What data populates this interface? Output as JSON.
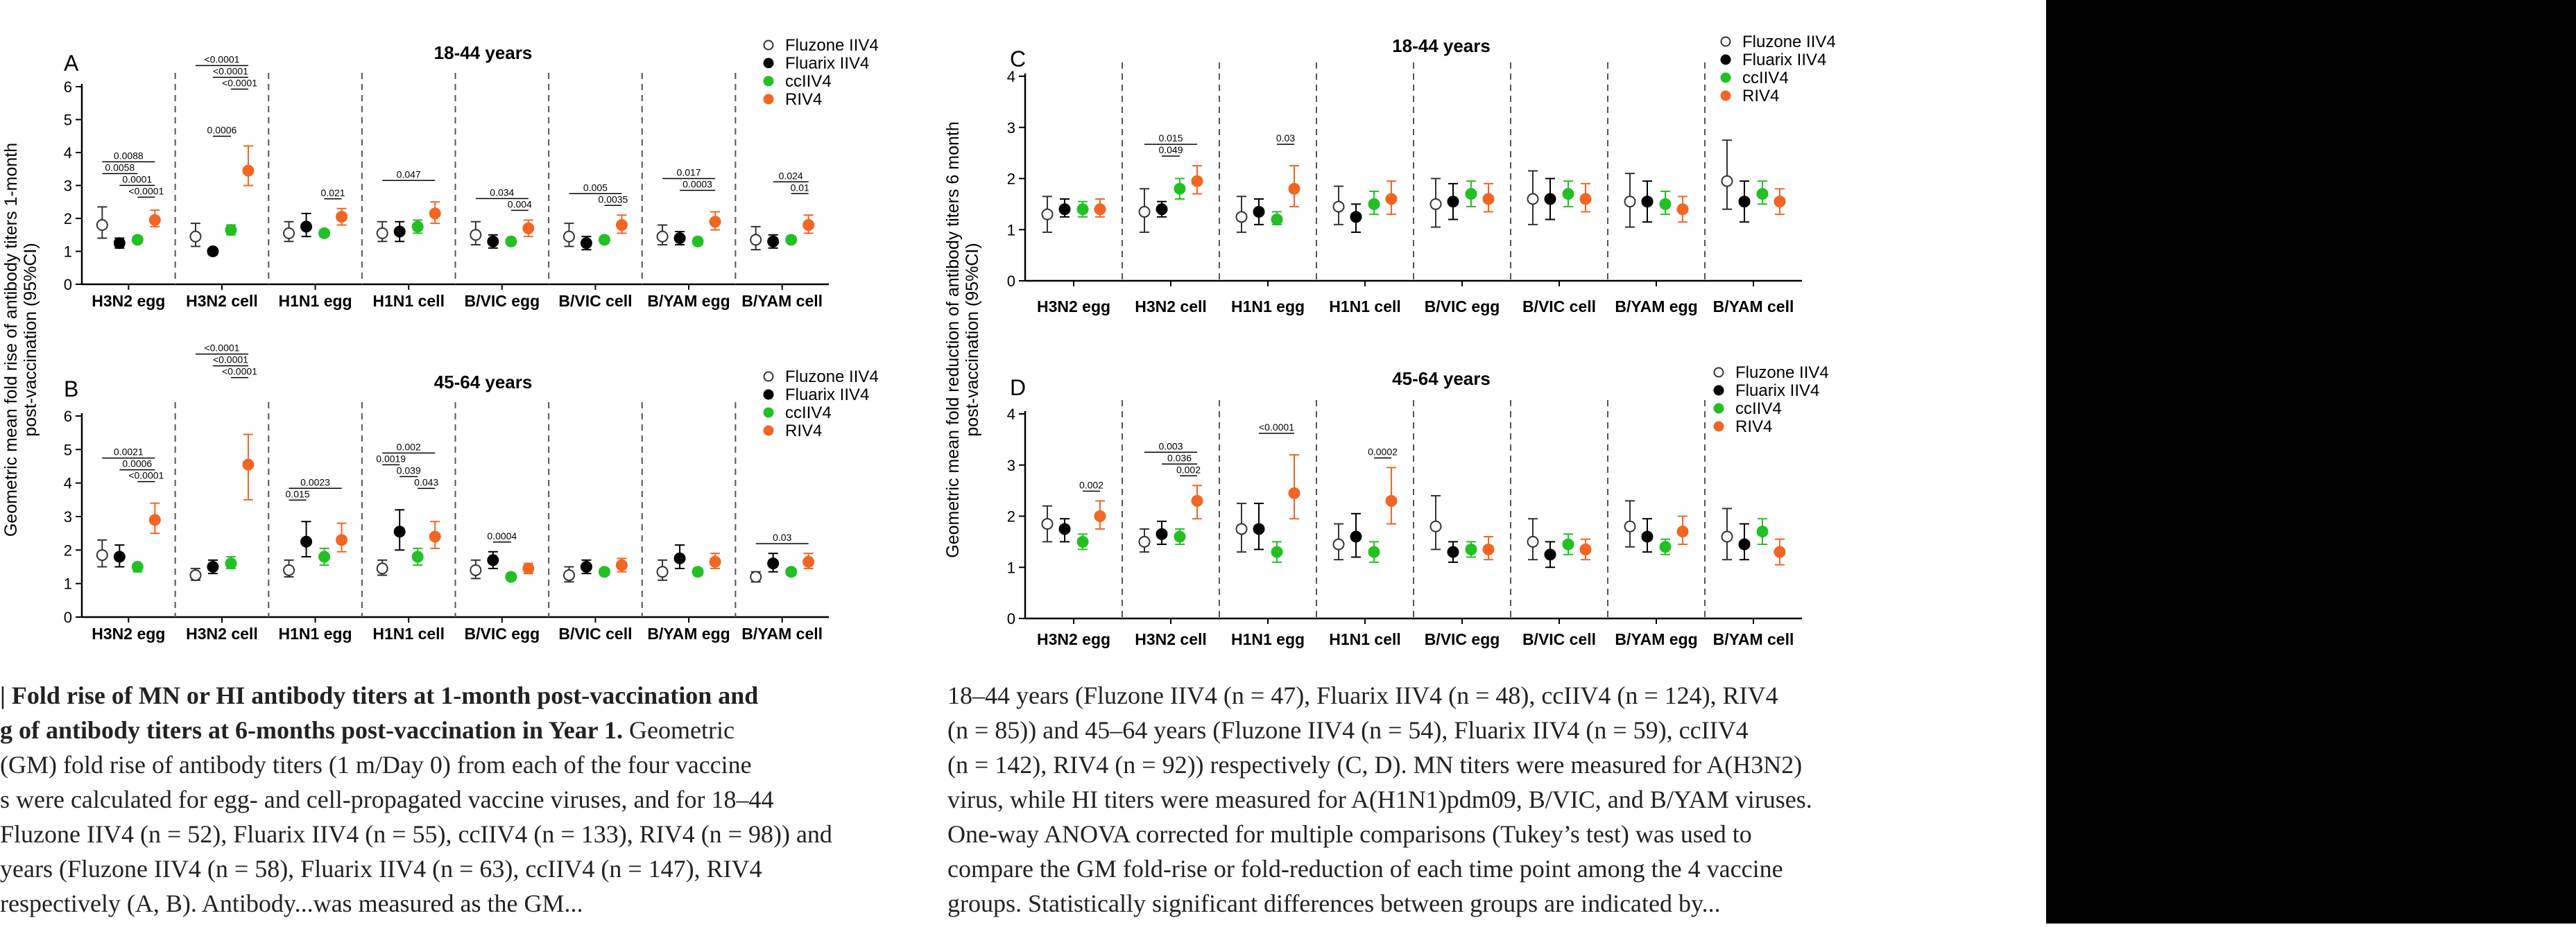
{
  "chart_data": [
    {
      "panel": "A",
      "type": "scatter",
      "title": "18-44 years",
      "categories": [
        "H3N2 egg",
        "H3N2 cell",
        "H1N1 egg",
        "H1N1 cell",
        "B/VIC egg",
        "B/VIC cell",
        "B/YAM egg",
        "B/YAM cell"
      ],
      "ylim": [
        0,
        6
      ],
      "yticks": [
        0,
        1,
        2,
        3,
        4,
        5,
        6
      ],
      "series": [
        {
          "name": "Fluzone IIV4",
          "values": [
            1.8,
            1.45,
            1.55,
            1.55,
            1.5,
            1.45,
            1.45,
            1.35
          ],
          "lo": [
            1.4,
            1.15,
            1.3,
            1.3,
            1.2,
            1.15,
            1.2,
            1.05
          ],
          "hi": [
            2.35,
            1.85,
            1.9,
            1.9,
            1.9,
            1.85,
            1.8,
            1.75
          ]
        },
        {
          "name": "Fluarix IIV4",
          "values": [
            1.25,
            1.0,
            1.75,
            1.6,
            1.3,
            1.25,
            1.4,
            1.3
          ],
          "lo": [
            1.1,
            0.9,
            1.45,
            1.3,
            1.1,
            1.05,
            1.2,
            1.1
          ],
          "hi": [
            1.4,
            1.05,
            2.15,
            1.9,
            1.5,
            1.45,
            1.6,
            1.5
          ]
        },
        {
          "name": "ccIIV4",
          "values": [
            1.35,
            1.65,
            1.55,
            1.75,
            1.3,
            1.35,
            1.3,
            1.35
          ],
          "lo": [
            1.25,
            1.5,
            1.45,
            1.55,
            1.2,
            1.25,
            1.2,
            1.25
          ],
          "hi": [
            1.45,
            1.8,
            1.65,
            1.95,
            1.4,
            1.45,
            1.4,
            1.45
          ]
        },
        {
          "name": "RIV4",
          "values": [
            1.95,
            3.45,
            2.05,
            2.15,
            1.7,
            1.8,
            1.9,
            1.8
          ],
          "lo": [
            1.75,
            3.0,
            1.8,
            1.85,
            1.45,
            1.55,
            1.65,
            1.55
          ],
          "hi": [
            2.25,
            4.2,
            2.3,
            2.5,
            1.95,
            2.1,
            2.2,
            2.1
          ]
        }
      ],
      "annotations": [
        {
          "cat": 0,
          "from": 0,
          "to": 3,
          "text": "0.0088",
          "level": 3
        },
        {
          "cat": 0,
          "from": 0,
          "to": 2,
          "text": "0.0058",
          "level": 2
        },
        {
          "cat": 0,
          "from": 1,
          "to": 3,
          "text": "0.0001",
          "level": 1
        },
        {
          "cat": 0,
          "from": 2,
          "to": 3,
          "text": "<0.0001",
          "level": 0
        },
        {
          "cat": 1,
          "from": 0,
          "to": 3,
          "text": "<0.0001",
          "level": 6
        },
        {
          "cat": 1,
          "from": 1,
          "to": 3,
          "text": "<0.0001",
          "level": 5
        },
        {
          "cat": 1,
          "from": 2,
          "to": 3,
          "text": "<0.0001",
          "level": 4
        },
        {
          "cat": 1,
          "from": 1,
          "to": 2,
          "text": "0.0006",
          "level": 0
        },
        {
          "cat": 2,
          "from": 2,
          "to": 3,
          "text": "0.021",
          "level": 0
        },
        {
          "cat": 3,
          "from": 0,
          "to": 3,
          "text": "0.047",
          "level": 1
        },
        {
          "cat": 4,
          "from": 0,
          "to": 3,
          "text": "0.034",
          "level": 1
        },
        {
          "cat": 4,
          "from": 2,
          "to": 3,
          "text": "0.004",
          "level": 0
        },
        {
          "cat": 5,
          "from": 0,
          "to": 3,
          "text": "0.005",
          "level": 1
        },
        {
          "cat": 5,
          "from": 2,
          "to": 3,
          "text": "0.0035",
          "level": 0
        },
        {
          "cat": 6,
          "from": 0,
          "to": 3,
          "text": "0.017",
          "level": 2
        },
        {
          "cat": 6,
          "from": 1,
          "to": 3,
          "text": "0.0003",
          "level": 1
        },
        {
          "cat": 7,
          "from": 1,
          "to": 3,
          "text": "0.024",
          "level": 2
        },
        {
          "cat": 7,
          "from": 2,
          "to": 3,
          "text": "0.01",
          "level": 1
        }
      ]
    },
    {
      "panel": "B",
      "type": "scatter",
      "title": "45-64 years",
      "categories": [
        "H3N2 egg",
        "H3N2 cell",
        "H1N1 egg",
        "H1N1 cell",
        "B/VIC egg",
        "B/VIC cell",
        "B/YAM egg",
        "B/YAM cell"
      ],
      "ylim": [
        0,
        6
      ],
      "yticks": [
        0,
        1,
        2,
        3,
        4,
        5,
        6
      ],
      "series": [
        {
          "name": "Fluzone IIV4",
          "values": [
            1.85,
            1.25,
            1.4,
            1.45,
            1.4,
            1.25,
            1.35,
            1.2
          ],
          "lo": [
            1.5,
            1.1,
            1.2,
            1.25,
            1.15,
            1.05,
            1.1,
            1.05
          ],
          "hi": [
            2.3,
            1.45,
            1.7,
            1.7,
            1.7,
            1.5,
            1.7,
            1.35
          ]
        },
        {
          "name": "Fluarix IIV4",
          "values": [
            1.8,
            1.5,
            2.25,
            2.55,
            1.7,
            1.5,
            1.75,
            1.6
          ],
          "lo": [
            1.5,
            1.3,
            1.8,
            2.0,
            1.45,
            1.3,
            1.45,
            1.35
          ],
          "hi": [
            2.15,
            1.7,
            2.85,
            3.2,
            1.95,
            1.7,
            2.15,
            1.9
          ]
        },
        {
          "name": "ccIIV4",
          "values": [
            1.5,
            1.6,
            1.8,
            1.8,
            1.2,
            1.35,
            1.35,
            1.35
          ],
          "lo": [
            1.35,
            1.45,
            1.55,
            1.55,
            1.1,
            1.25,
            1.25,
            1.25
          ],
          "hi": [
            1.6,
            1.8,
            2.05,
            2.05,
            1.3,
            1.45,
            1.45,
            1.45
          ]
        },
        {
          "name": "RIV4",
          "values": [
            2.9,
            4.55,
            2.3,
            2.4,
            1.45,
            1.55,
            1.65,
            1.65
          ],
          "lo": [
            2.5,
            3.5,
            1.95,
            2.05,
            1.3,
            1.35,
            1.45,
            1.45
          ],
          "hi": [
            3.4,
            5.45,
            2.8,
            2.85,
            1.6,
            1.75,
            1.9,
            1.9
          ]
        }
      ],
      "annotations": [
        {
          "cat": 0,
          "from": 0,
          "to": 3,
          "text": "0.0021",
          "level": 3
        },
        {
          "cat": 0,
          "from": 1,
          "to": 3,
          "text": "0.0006",
          "level": 2
        },
        {
          "cat": 0,
          "from": 2,
          "to": 3,
          "text": "<0.0001",
          "level": 1
        },
        {
          "cat": 1,
          "from": 0,
          "to": 3,
          "text": "<0.0001",
          "level": 6
        },
        {
          "cat": 1,
          "from": 1,
          "to": 3,
          "text": "<0.0001",
          "level": 5
        },
        {
          "cat": 1,
          "from": 2,
          "to": 3,
          "text": "<0.0001",
          "level": 4
        },
        {
          "cat": 2,
          "from": 0,
          "to": 3,
          "text": "0.0023",
          "level": 2
        },
        {
          "cat": 2,
          "from": 0,
          "to": 1,
          "text": "0.015",
          "level": 1
        },
        {
          "cat": 3,
          "from": 0,
          "to": 3,
          "text": "0.002",
          "level": 4
        },
        {
          "cat": 3,
          "from": 0,
          "to": 1,
          "text": "0.0019",
          "level": 3
        },
        {
          "cat": 3,
          "from": 1,
          "to": 2,
          "text": "0.039",
          "level": 2
        },
        {
          "cat": 3,
          "from": 2,
          "to": 3,
          "text": "0.043",
          "level": 1
        },
        {
          "cat": 4,
          "from": 1,
          "to": 2,
          "text": "0.0004",
          "level": 0
        },
        {
          "cat": 7,
          "from": 0,
          "to": 3,
          "text": "0.03",
          "level": 0
        }
      ]
    },
    {
      "panel": "C",
      "type": "scatter",
      "title": "18-44 years",
      "categories": [
        "H3N2 egg",
        "H3N2 cell",
        "H1N1 egg",
        "H1N1 cell",
        "B/VIC egg",
        "B/VIC cell",
        "B/YAM egg",
        "B/YAM cell"
      ],
      "ylim": [
        0,
        4
      ],
      "yticks": [
        0,
        1,
        2,
        3,
        4
      ],
      "series": [
        {
          "name": "Fluzone IIV4",
          "values": [
            1.3,
            1.35,
            1.25,
            1.45,
            1.5,
            1.6,
            1.55,
            1.95
          ],
          "lo": [
            0.95,
            0.95,
            0.95,
            1.1,
            1.05,
            1.1,
            1.05,
            1.4
          ],
          "hi": [
            1.65,
            1.8,
            1.65,
            1.85,
            2.0,
            2.15,
            2.1,
            2.75
          ]
        },
        {
          "name": "Fluarix IIV4",
          "values": [
            1.4,
            1.4,
            1.35,
            1.25,
            1.55,
            1.6,
            1.55,
            1.55
          ],
          "lo": [
            1.25,
            1.25,
            1.1,
            0.95,
            1.2,
            1.2,
            1.15,
            1.15
          ],
          "hi": [
            1.6,
            1.55,
            1.6,
            1.5,
            1.9,
            2.0,
            1.95,
            1.95
          ]
        },
        {
          "name": "ccIIV4",
          "values": [
            1.4,
            1.8,
            1.2,
            1.5,
            1.7,
            1.7,
            1.5,
            1.7
          ],
          "lo": [
            1.25,
            1.6,
            1.1,
            1.3,
            1.45,
            1.45,
            1.3,
            1.5
          ],
          "hi": [
            1.55,
            2.0,
            1.35,
            1.75,
            1.95,
            1.95,
            1.75,
            1.95
          ]
        },
        {
          "name": "RIV4",
          "values": [
            1.4,
            1.95,
            1.8,
            1.6,
            1.6,
            1.6,
            1.4,
            1.55
          ],
          "lo": [
            1.25,
            1.7,
            1.45,
            1.3,
            1.35,
            1.35,
            1.15,
            1.3
          ],
          "hi": [
            1.6,
            2.25,
            2.25,
            1.95,
            1.9,
            1.9,
            1.65,
            1.8
          ]
        }
      ],
      "annotations": [
        {
          "cat": 1,
          "from": 0,
          "to": 3,
          "text": "0.015",
          "level": 1
        },
        {
          "cat": 1,
          "from": 1,
          "to": 2,
          "text": "0.049",
          "level": 0
        },
        {
          "cat": 2,
          "from": 2,
          "to": 3,
          "text": "0.03",
          "level": 1
        }
      ]
    },
    {
      "panel": "D",
      "type": "scatter",
      "title": "45-64 years",
      "categories": [
        "H3N2 egg",
        "H3N2 cell",
        "H1N1 egg",
        "H1N1 cell",
        "B/VIC egg",
        "B/VIC cell",
        "B/YAM egg",
        "B/YAM cell"
      ],
      "ylim": [
        0,
        4
      ],
      "yticks": [
        0,
        1,
        2,
        3,
        4
      ],
      "series": [
        {
          "name": "Fluzone IIV4",
          "values": [
            1.85,
            1.5,
            1.75,
            1.45,
            1.8,
            1.5,
            1.8,
            1.6
          ],
          "lo": [
            1.5,
            1.3,
            1.3,
            1.15,
            1.35,
            1.15,
            1.4,
            1.15
          ],
          "hi": [
            2.2,
            1.75,
            2.25,
            1.85,
            2.4,
            1.95,
            2.3,
            2.15
          ]
        },
        {
          "name": "Fluarix IIV4",
          "values": [
            1.75,
            1.65,
            1.75,
            1.6,
            1.3,
            1.25,
            1.6,
            1.45
          ],
          "lo": [
            1.5,
            1.45,
            1.35,
            1.2,
            1.1,
            1.0,
            1.3,
            1.15
          ],
          "hi": [
            1.95,
            1.9,
            2.25,
            2.05,
            1.5,
            1.5,
            1.95,
            1.85
          ]
        },
        {
          "name": "ccIIV4",
          "values": [
            1.5,
            1.6,
            1.3,
            1.3,
            1.35,
            1.45,
            1.4,
            1.7
          ],
          "lo": [
            1.35,
            1.45,
            1.1,
            1.1,
            1.2,
            1.25,
            1.25,
            1.45
          ],
          "hi": [
            1.65,
            1.75,
            1.5,
            1.5,
            1.5,
            1.65,
            1.55,
            1.95
          ]
        },
        {
          "name": "RIV4",
          "values": [
            2.0,
            2.3,
            2.45,
            2.3,
            1.35,
            1.35,
            1.7,
            1.3
          ],
          "lo": [
            1.75,
            1.95,
            1.95,
            1.85,
            1.15,
            1.15,
            1.45,
            1.05
          ],
          "hi": [
            2.3,
            2.6,
            3.2,
            2.95,
            1.6,
            1.55,
            2.0,
            1.55
          ]
        }
      ],
      "annotations": [
        {
          "cat": 0,
          "from": 2,
          "to": 3,
          "text": "0.002",
          "level": 0
        },
        {
          "cat": 1,
          "from": 0,
          "to": 3,
          "text": "0.003",
          "level": 2
        },
        {
          "cat": 1,
          "from": 1,
          "to": 3,
          "text": "0.036",
          "level": 1
        },
        {
          "cat": 1,
          "from": 2,
          "to": 3,
          "text": "0.002",
          "level": 0
        },
        {
          "cat": 2,
          "from": 1,
          "to": 3,
          "text": "<0.0001",
          "level": 1
        },
        {
          "cat": 3,
          "from": 2,
          "to": 3,
          "text": "0.0002",
          "level": 0
        }
      ]
    }
  ],
  "series_colors": {
    "Fluzone IIV4": "#ffffff",
    "Fluarix IIV4": "#000000",
    "ccIIV4": "#22c022",
    "RIV4": "#f26522"
  },
  "y_axis_left": "Geometric mean fold rise of antibody titers 1-month post-vaccination (95%CI)",
  "y_axis_right": "Geometric mean fold reduction of antibody titers 6 month post-vaccination (95%CI)",
  "caption": {
    "left_lines": [
      {
        "strong": "| Fold rise of MN or HI antibody titers at 1-month post-vaccination and",
        "normal": ""
      },
      {
        "strong": "g of antibody titers at 6-months post-vaccination in Year 1.",
        "normal": " Geometric"
      },
      {
        "strong": "",
        "normal": "(GM) fold rise of antibody titers (1 m/Day 0) from each of the four vaccine"
      },
      {
        "strong": "",
        "normal": "s were calculated for egg- and cell-propagated vaccine viruses, and for 18–44"
      },
      {
        "strong": "",
        "normal": "Fluzone IIV4 (n = 52), Fluarix IIV4 (n = 55), ccIIV4 (n = 133), RIV4 (n = 98)) and"
      },
      {
        "strong": "",
        "normal": "years (Fluzone IIV4 (n = 58), Fluarix IIV4 (n = 63), ccIIV4 (n = 147), RIV4"
      },
      {
        "strong": "",
        "normal": "respectively (A, B). Antibody...was measured as the GM..."
      }
    ],
    "right_lines": [
      "18–44 years (Fluzone IIV4 (n = 47), Fluarix IIV4 (n = 48), ccIIV4 (n = 124), RIV4",
      "(n = 85)) and 45–64 years (Fluzone IIV4 (n = 54), Fluarix IIV4 (n = 59), ccIIV4",
      "(n = 142), RIV4 (n = 92)) respectively (C, D). MN titers were measured for A(H3N2)",
      "virus, while HI titers were measured for A(H1N1)pdm09, B/VIC, and B/YAM viruses.",
      "One-way ANOVA corrected for multiple comparisons (Tukey’s test) was used to",
      "compare the GM fold-rise or fold-reduction of each time point among the 4 vaccine",
      "groups. Statistically significant differences between groups are indicated by..."
    ]
  }
}
